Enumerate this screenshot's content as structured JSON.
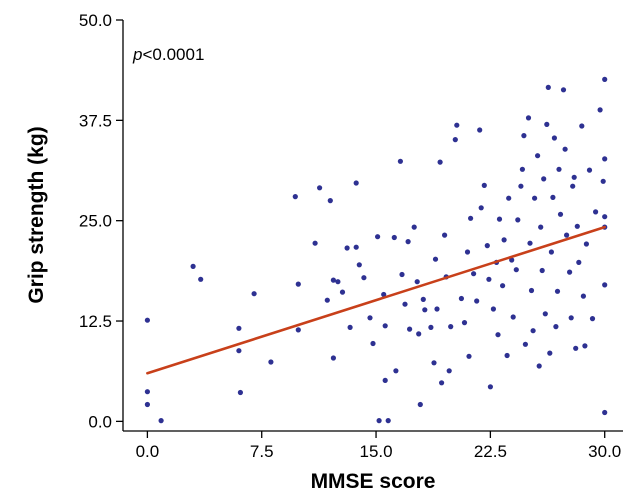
{
  "chart_data": {
    "type": "scatter",
    "title": "",
    "xlabel": "MMSE score",
    "ylabel": "Grip strength (kg)",
    "xlim": [
      -1.6,
      31.2
    ],
    "ylim": [
      -1.2,
      50
    ],
    "xticks": [
      0,
      7.5,
      15,
      22.5,
      30
    ],
    "xtick_labels": [
      "0.0",
      "7.5",
      "15.0",
      "22.5",
      "30.0"
    ],
    "yticks": [
      0,
      12.5,
      25,
      37.5,
      50
    ],
    "ytick_labels": [
      "0.0",
      "12.5",
      "25.0",
      "37.5",
      "50.0"
    ],
    "grid": false,
    "annotation": {
      "italic": "p",
      "text": "<0.0001"
    },
    "colors": {
      "points": "#2e3192",
      "fit_line": "#c8401a",
      "axes": "#000000"
    },
    "fit_line": {
      "x": [
        0,
        30
      ],
      "y": [
        6.0,
        24.2
      ]
    },
    "points": [
      {
        "x": 0.0,
        "y": 12.6
      },
      {
        "x": 0.0,
        "y": 3.7
      },
      {
        "x": 0.0,
        "y": 2.1
      },
      {
        "x": 0.9,
        "y": 0.1
      },
      {
        "x": 3.0,
        "y": 19.3
      },
      {
        "x": 3.5,
        "y": 17.7
      },
      {
        "x": 6.0,
        "y": 11.6
      },
      {
        "x": 6.0,
        "y": 8.8
      },
      {
        "x": 6.1,
        "y": 3.6
      },
      {
        "x": 7.0,
        "y": 15.9
      },
      {
        "x": 8.1,
        "y": 7.4
      },
      {
        "x": 9.7,
        "y": 28.0
      },
      {
        "x": 9.9,
        "y": 17.1
      },
      {
        "x": 9.9,
        "y": 11.4
      },
      {
        "x": 11.0,
        "y": 22.2
      },
      {
        "x": 11.3,
        "y": 29.1
      },
      {
        "x": 11.8,
        "y": 15.1
      },
      {
        "x": 12.0,
        "y": 27.5
      },
      {
        "x": 12.2,
        "y": 17.6
      },
      {
        "x": 12.2,
        "y": 7.9
      },
      {
        "x": 12.5,
        "y": 17.4
      },
      {
        "x": 12.8,
        "y": 16.1
      },
      {
        "x": 13.1,
        "y": 21.6
      },
      {
        "x": 13.3,
        "y": 11.7
      },
      {
        "x": 13.7,
        "y": 29.7
      },
      {
        "x": 13.7,
        "y": 21.7
      },
      {
        "x": 13.9,
        "y": 19.5
      },
      {
        "x": 14.2,
        "y": 17.9
      },
      {
        "x": 14.6,
        "y": 12.9
      },
      {
        "x": 14.8,
        "y": 9.7
      },
      {
        "x": 15.1,
        "y": 23.0
      },
      {
        "x": 15.2,
        "y": 0.1
      },
      {
        "x": 15.5,
        "y": 15.8
      },
      {
        "x": 15.6,
        "y": 11.9
      },
      {
        "x": 15.6,
        "y": 5.1
      },
      {
        "x": 15.8,
        "y": 0.1
      },
      {
        "x": 16.2,
        "y": 22.9
      },
      {
        "x": 16.3,
        "y": 6.3
      },
      {
        "x": 16.6,
        "y": 32.4
      },
      {
        "x": 16.7,
        "y": 18.3
      },
      {
        "x": 16.9,
        "y": 14.6
      },
      {
        "x": 17.1,
        "y": 22.4
      },
      {
        "x": 17.2,
        "y": 11.5
      },
      {
        "x": 17.5,
        "y": 24.2
      },
      {
        "x": 17.7,
        "y": 17.4
      },
      {
        "x": 17.8,
        "y": 10.9
      },
      {
        "x": 17.9,
        "y": 2.1
      },
      {
        "x": 18.1,
        "y": 15.2
      },
      {
        "x": 18.2,
        "y": 13.9
      },
      {
        "x": 18.6,
        "y": 11.7
      },
      {
        "x": 18.8,
        "y": 7.3
      },
      {
        "x": 18.9,
        "y": 20.2
      },
      {
        "x": 19.0,
        "y": 14.0
      },
      {
        "x": 19.2,
        "y": 32.3
      },
      {
        "x": 19.3,
        "y": 4.8
      },
      {
        "x": 19.5,
        "y": 23.2
      },
      {
        "x": 19.6,
        "y": 18.0
      },
      {
        "x": 19.8,
        "y": 6.3
      },
      {
        "x": 19.9,
        "y": 11.8
      },
      {
        "x": 20.2,
        "y": 35.1
      },
      {
        "x": 20.3,
        "y": 36.9
      },
      {
        "x": 20.6,
        "y": 15.3
      },
      {
        "x": 20.8,
        "y": 12.3
      },
      {
        "x": 21.0,
        "y": 21.1
      },
      {
        "x": 21.1,
        "y": 8.1
      },
      {
        "x": 21.2,
        "y": 25.3
      },
      {
        "x": 21.4,
        "y": 18.4
      },
      {
        "x": 21.6,
        "y": 15.0
      },
      {
        "x": 21.8,
        "y": 36.3
      },
      {
        "x": 21.9,
        "y": 26.6
      },
      {
        "x": 22.1,
        "y": 29.4
      },
      {
        "x": 22.3,
        "y": 21.9
      },
      {
        "x": 22.4,
        "y": 17.7
      },
      {
        "x": 22.5,
        "y": 4.3
      },
      {
        "x": 22.7,
        "y": 14.0
      },
      {
        "x": 22.9,
        "y": 19.8
      },
      {
        "x": 23.0,
        "y": 10.8
      },
      {
        "x": 23.1,
        "y": 25.2
      },
      {
        "x": 23.3,
        "y": 16.9
      },
      {
        "x": 23.4,
        "y": 22.6
      },
      {
        "x": 23.6,
        "y": 8.2
      },
      {
        "x": 23.7,
        "y": 27.8
      },
      {
        "x": 23.9,
        "y": 20.1
      },
      {
        "x": 24.0,
        "y": 13.0
      },
      {
        "x": 24.2,
        "y": 18.9
      },
      {
        "x": 24.3,
        "y": 25.1
      },
      {
        "x": 24.5,
        "y": 29.3
      },
      {
        "x": 24.6,
        "y": 31.4
      },
      {
        "x": 24.7,
        "y": 35.6
      },
      {
        "x": 24.8,
        "y": 9.6
      },
      {
        "x": 25.0,
        "y": 37.8
      },
      {
        "x": 25.1,
        "y": 22.2
      },
      {
        "x": 25.2,
        "y": 16.3
      },
      {
        "x": 25.3,
        "y": 11.3
      },
      {
        "x": 25.4,
        "y": 27.8
      },
      {
        "x": 25.6,
        "y": 33.1
      },
      {
        "x": 25.7,
        "y": 6.9
      },
      {
        "x": 25.8,
        "y": 24.2
      },
      {
        "x": 25.9,
        "y": 18.8
      },
      {
        "x": 26.0,
        "y": 30.2
      },
      {
        "x": 26.1,
        "y": 13.4
      },
      {
        "x": 26.2,
        "y": 37.0
      },
      {
        "x": 26.3,
        "y": 41.6
      },
      {
        "x": 26.4,
        "y": 8.5
      },
      {
        "x": 26.5,
        "y": 21.1
      },
      {
        "x": 26.6,
        "y": 27.9
      },
      {
        "x": 26.7,
        "y": 35.3
      },
      {
        "x": 26.8,
        "y": 11.8
      },
      {
        "x": 26.9,
        "y": 16.2
      },
      {
        "x": 27.0,
        "y": 31.4
      },
      {
        "x": 27.1,
        "y": 25.8
      },
      {
        "x": 27.3,
        "y": 41.3
      },
      {
        "x": 27.4,
        "y": 33.9
      },
      {
        "x": 27.5,
        "y": 23.2
      },
      {
        "x": 27.7,
        "y": 18.6
      },
      {
        "x": 27.8,
        "y": 12.9
      },
      {
        "x": 27.9,
        "y": 29.3
      },
      {
        "x": 28.0,
        "y": 30.4
      },
      {
        "x": 28.1,
        "y": 9.1
      },
      {
        "x": 28.2,
        "y": 24.3
      },
      {
        "x": 28.3,
        "y": 19.8
      },
      {
        "x": 28.5,
        "y": 36.8
      },
      {
        "x": 28.6,
        "y": 15.6
      },
      {
        "x": 28.7,
        "y": 9.4
      },
      {
        "x": 28.8,
        "y": 22.1
      },
      {
        "x": 29.0,
        "y": 31.3
      },
      {
        "x": 29.2,
        "y": 12.8
      },
      {
        "x": 29.4,
        "y": 26.1
      },
      {
        "x": 29.7,
        "y": 38.8
      },
      {
        "x": 30.0,
        "y": 42.6
      },
      {
        "x": 30.0,
        "y": 32.7
      },
      {
        "x": 30.0,
        "y": 25.5
      },
      {
        "x": 30.0,
        "y": 24.2
      },
      {
        "x": 30.0,
        "y": 17.0
      },
      {
        "x": 30.0,
        "y": 1.1
      },
      {
        "x": 29.9,
        "y": 29.9
      }
    ]
  }
}
